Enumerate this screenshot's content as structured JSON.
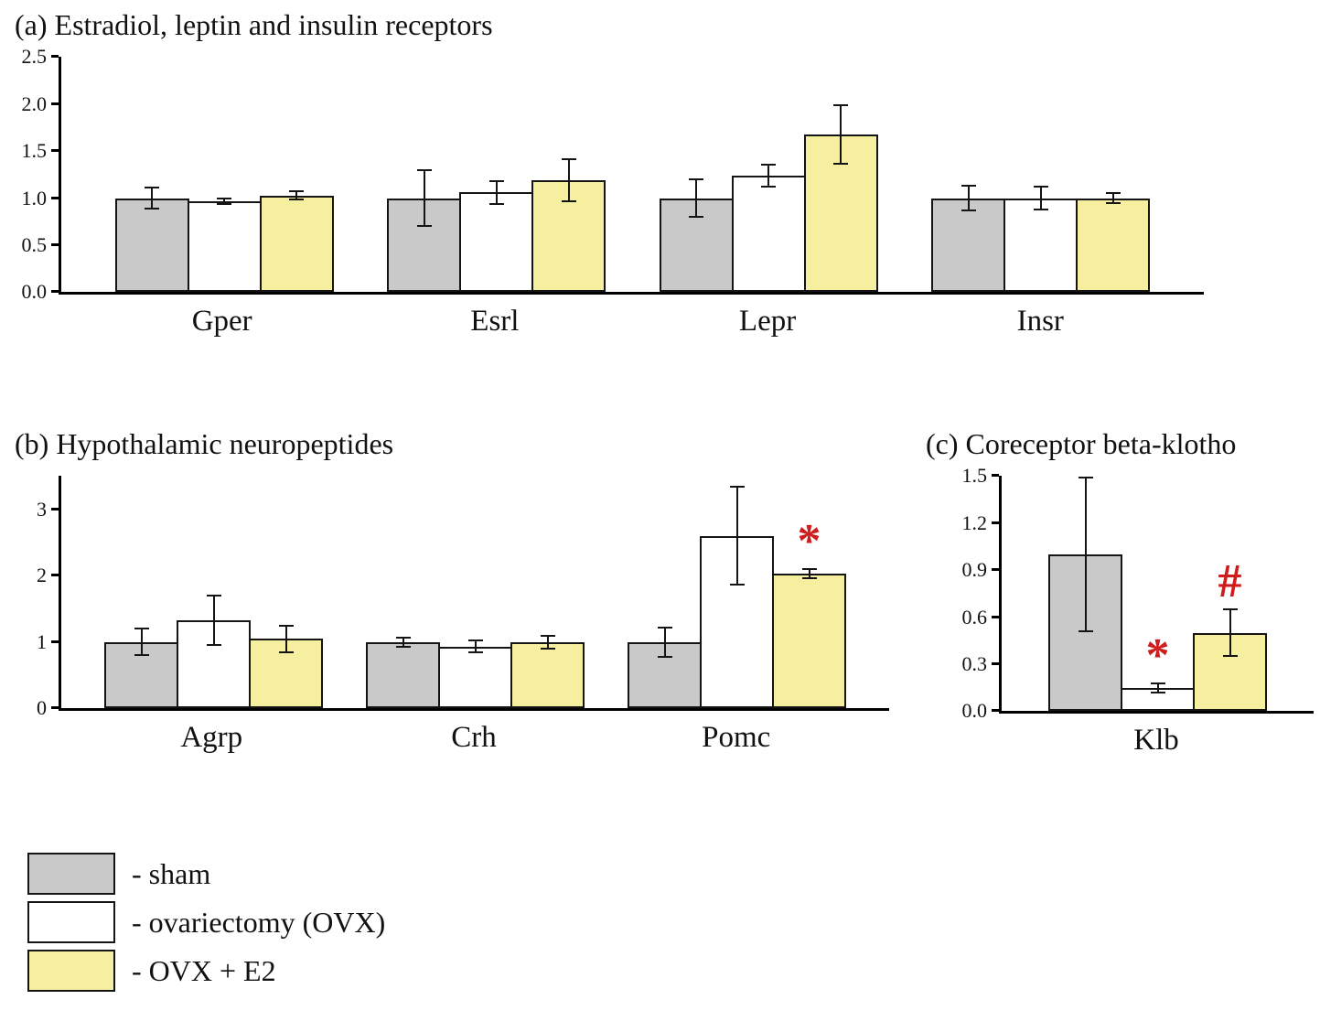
{
  "colors": {
    "sham": "#c9c9c9",
    "ovx": "#ffffff",
    "ovx_e2": "#f6ef9f",
    "bar_border": "#141414",
    "annotation_red": "#cf1d1d"
  },
  "legend": {
    "items": [
      {
        "key": "sham",
        "label": "- sham",
        "color": "#c9c9c9"
      },
      {
        "key": "ovx",
        "label": "- ovariectomy (OVX)",
        "color": "#ffffff"
      },
      {
        "key": "ovx_e2",
        "label": "- OVX + E2",
        "color": "#f6ef9f"
      }
    ]
  },
  "chart_data": [
    {
      "id": "panel_a",
      "type": "bar",
      "title": "(a) Estradiol, leptin and insulin receptors",
      "categories": [
        "Gper",
        "Esrl",
        "Lepr",
        "Insr"
      ],
      "series": [
        {
          "key": "sham",
          "name": "sham",
          "color": "#c9c9c9",
          "values": [
            1.0,
            1.0,
            1.0,
            1.0
          ],
          "errors": [
            0.11,
            0.3,
            0.2,
            0.13
          ]
        },
        {
          "key": "ovx",
          "name": "ovariectomy (OVX)",
          "color": "#ffffff",
          "values": [
            0.97,
            1.06,
            1.24,
            1.0
          ],
          "errors": [
            0.03,
            0.12,
            0.12,
            0.12
          ]
        },
        {
          "key": "ovx-e2",
          "name": "OVX + E2",
          "color": "#f6ef9f",
          "values": [
            1.03,
            1.19,
            1.68,
            1.0
          ],
          "errors": [
            0.04,
            0.22,
            0.31,
            0.05
          ]
        }
      ],
      "ylim": [
        0,
        2.5
      ],
      "yticks": [
        "0.0",
        "0.5",
        "1.0",
        "1.5",
        "2.0",
        "2.5"
      ],
      "grid": false,
      "annotations": []
    },
    {
      "id": "panel_b",
      "type": "bar",
      "title": "(b) Hypothalamic neuropeptides",
      "categories": [
        "Agrp",
        "Crh",
        "Pomc"
      ],
      "series": [
        {
          "key": "sham",
          "name": "sham",
          "color": "#c9c9c9",
          "values": [
            1.0,
            1.0,
            1.0
          ],
          "errors": [
            0.2,
            0.07,
            0.22
          ]
        },
        {
          "key": "ovx",
          "name": "ovariectomy (OVX)",
          "color": "#ffffff",
          "values": [
            1.33,
            0.93,
            2.6
          ],
          "errors": [
            0.37,
            0.09,
            0.74
          ]
        },
        {
          "key": "ovx-e2",
          "name": "OVX + E2",
          "color": "#f6ef9f",
          "values": [
            1.05,
            1.0,
            2.03
          ],
          "errors": [
            0.2,
            0.1,
            0.07
          ]
        }
      ],
      "ylim": [
        0,
        3.5
      ],
      "yticks": [
        "0",
        "1",
        "2",
        "3"
      ],
      "grid": false,
      "annotations": [
        {
          "category_index": 2,
          "series_index": 2,
          "symbol": "*"
        }
      ]
    },
    {
      "id": "panel_c",
      "type": "bar",
      "title": "(c) Coreceptor beta-klotho",
      "categories": [
        "Klb"
      ],
      "series": [
        {
          "key": "sham",
          "name": "sham",
          "color": "#c9c9c9",
          "values": [
            1.0
          ],
          "errors": [
            0.49
          ]
        },
        {
          "key": "ovx",
          "name": "ovariectomy (OVX)",
          "color": "#ffffff",
          "values": [
            0.15
          ],
          "errors": [
            0.03
          ]
        },
        {
          "key": "ovx-e2",
          "name": "OVX + E2",
          "color": "#f6ef9f",
          "values": [
            0.5
          ],
          "errors": [
            0.15
          ]
        }
      ],
      "ylim": [
        0,
        1.5
      ],
      "yticks": [
        "0.0",
        "0.3",
        "0.6",
        "0.9",
        "1.2",
        "1.5"
      ],
      "grid": false,
      "annotations": [
        {
          "category_index": 0,
          "series_index": 1,
          "symbol": "*"
        },
        {
          "category_index": 0,
          "series_index": 2,
          "symbol": "#"
        }
      ]
    }
  ]
}
